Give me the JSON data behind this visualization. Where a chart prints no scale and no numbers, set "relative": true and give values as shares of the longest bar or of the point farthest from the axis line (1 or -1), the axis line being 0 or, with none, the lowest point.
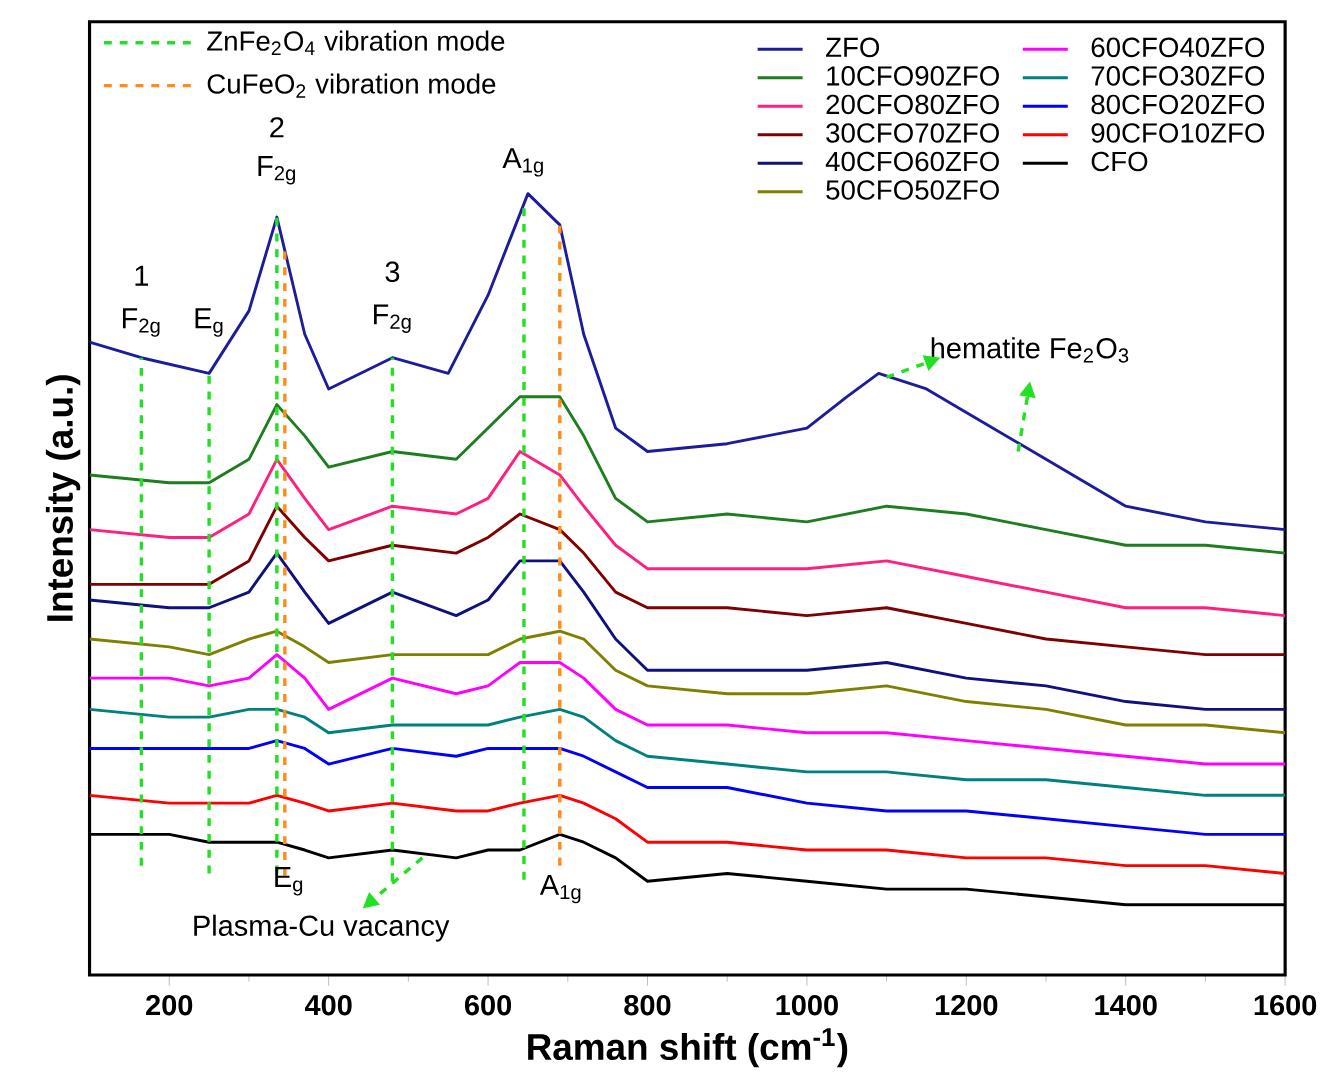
{
  "chart_data": {
    "type": "line",
    "relative": true,
    "xlabel": "Raman shift (cm$^{-1}$)",
    "ylabel": "Intensity (a.u.)",
    "xlim": [
      100,
      1600
    ],
    "xticks": [
      200,
      400,
      600,
      800,
      1000,
      1200,
      1400,
      1600
    ],
    "legend": "top right",
    "x": [
      100,
      200,
      250,
      300,
      335,
      370,
      400,
      480,
      560,
      600,
      640,
      690,
      720,
      760,
      800,
      900,
      1000,
      1100,
      1200,
      1300,
      1400,
      1500,
      1600
    ],
    "series": [
      {
        "name": "ZFO",
        "color": "#1c1c9c",
        "x": [
          100,
          165,
          250,
          300,
          335,
          370,
          400,
          480,
          550,
          600,
          650,
          690,
          720,
          760,
          800,
          900,
          1000,
          1050,
          1090,
          1150,
          1200,
          1300,
          1350,
          1400,
          1500,
          1600
        ],
        "values": [
          0.81,
          0.79,
          0.77,
          0.85,
          0.97,
          0.82,
          0.75,
          0.79,
          0.77,
          0.87,
          1.0,
          0.96,
          0.82,
          0.7,
          0.67,
          0.68,
          0.7,
          0.74,
          0.77,
          0.75,
          0.72,
          0.66,
          0.63,
          0.6,
          0.58,
          0.57
        ]
      },
      {
        "name": "10CFO90ZFO",
        "color": "#1e7d1e",
        "values": [
          0.64,
          0.63,
          0.63,
          0.66,
          0.73,
          0.69,
          0.65,
          0.67,
          0.66,
          0.7,
          0.74,
          0.74,
          0.69,
          0.61,
          0.58,
          0.59,
          0.58,
          0.6,
          0.59,
          0.57,
          0.55,
          0.55,
          0.54
        ]
      },
      {
        "name": "20CFO80ZFO",
        "color": "#ff1f7f",
        "values": [
          0.57,
          0.56,
          0.56,
          0.59,
          0.66,
          0.61,
          0.57,
          0.6,
          0.59,
          0.61,
          0.67,
          0.64,
          0.6,
          0.55,
          0.52,
          0.52,
          0.52,
          0.53,
          0.51,
          0.49,
          0.47,
          0.47,
          0.46
        ]
      },
      {
        "name": "30CFO70ZFO",
        "color": "#7f0000",
        "values": [
          0.5,
          0.5,
          0.5,
          0.53,
          0.6,
          0.56,
          0.53,
          0.55,
          0.54,
          0.56,
          0.59,
          0.57,
          0.54,
          0.49,
          0.47,
          0.47,
          0.46,
          0.47,
          0.45,
          0.43,
          0.42,
          0.41,
          0.41
        ]
      },
      {
        "name": "40CFO60ZFO",
        "color": "#10107f",
        "values": [
          0.48,
          0.47,
          0.47,
          0.49,
          0.54,
          0.49,
          0.45,
          0.49,
          0.46,
          0.48,
          0.53,
          0.53,
          0.49,
          0.43,
          0.39,
          0.39,
          0.39,
          0.4,
          0.38,
          0.37,
          0.35,
          0.34,
          0.34
        ]
      },
      {
        "name": "50CFO50ZFO",
        "color": "#808000",
        "values": [
          0.43,
          0.42,
          0.41,
          0.43,
          0.44,
          0.42,
          0.4,
          0.41,
          0.41,
          0.41,
          0.43,
          0.44,
          0.43,
          0.39,
          0.37,
          0.36,
          0.36,
          0.37,
          0.35,
          0.34,
          0.32,
          0.32,
          0.31
        ]
      },
      {
        "name": "60CFO40ZFO",
        "color": "#ff00ff",
        "values": [
          0.38,
          0.38,
          0.37,
          0.38,
          0.41,
          0.38,
          0.34,
          0.38,
          0.36,
          0.37,
          0.4,
          0.4,
          0.38,
          0.34,
          0.32,
          0.32,
          0.31,
          0.31,
          0.3,
          0.29,
          0.28,
          0.27,
          0.27
        ]
      },
      {
        "name": "70CFO30ZFO",
        "color": "#008080",
        "values": [
          0.34,
          0.33,
          0.33,
          0.34,
          0.34,
          0.33,
          0.31,
          0.32,
          0.32,
          0.32,
          0.33,
          0.34,
          0.33,
          0.3,
          0.28,
          0.27,
          0.26,
          0.26,
          0.25,
          0.25,
          0.24,
          0.23,
          0.23
        ]
      },
      {
        "name": "80CFO20ZFO",
        "color": "#0000ff",
        "values": [
          0.29,
          0.29,
          0.29,
          0.29,
          0.3,
          0.29,
          0.27,
          0.29,
          0.28,
          0.29,
          0.29,
          0.29,
          0.28,
          0.26,
          0.24,
          0.24,
          0.22,
          0.21,
          0.21,
          0.2,
          0.19,
          0.18,
          0.18
        ]
      },
      {
        "name": "90CFO10ZFO",
        "color": "#ff0000",
        "values": [
          0.23,
          0.22,
          0.22,
          0.22,
          0.23,
          0.22,
          0.21,
          0.22,
          0.21,
          0.21,
          0.22,
          0.23,
          0.22,
          0.2,
          0.17,
          0.17,
          0.16,
          0.16,
          0.15,
          0.15,
          0.14,
          0.14,
          0.13
        ]
      },
      {
        "name": "CFO",
        "color": "#000000",
        "values": [
          0.18,
          0.18,
          0.17,
          0.17,
          0.17,
          0.16,
          0.15,
          0.16,
          0.15,
          0.16,
          0.16,
          0.18,
          0.17,
          0.15,
          0.12,
          0.13,
          0.12,
          0.11,
          0.11,
          0.1,
          0.09,
          0.09,
          0.09
        ]
      }
    ],
    "ref_lines": [
      {
        "axis": "x",
        "value": 165,
        "label": "ZnFe$_{2}$O$_{4}$ vibration mode",
        "color": "#22e022",
        "line_style": "dashed"
      },
      {
        "axis": "x",
        "value": 250,
        "color": "#22e022",
        "line_style": "dashed"
      },
      {
        "axis": "x",
        "value": 335,
        "color": "#22e022",
        "line_style": "dashed"
      },
      {
        "axis": "x",
        "value": 480,
        "color": "#22e022",
        "line_style": "dashed"
      },
      {
        "axis": "x",
        "value": 645,
        "color": "#22e022",
        "line_style": "dashed"
      },
      {
        "axis": "x",
        "value": 345,
        "label": "CuFeO$_{2}$ vibration mode",
        "color": "#ff8c1a",
        "line_style": "dashed"
      },
      {
        "axis": "x",
        "value": 690,
        "color": "#ff8c1a",
        "line_style": "dashed"
      }
    ],
    "annotations": [
      "1",
      "F$_{2g}$",
      "E$_{g}$",
      "2",
      "F$_{2g}$",
      "3",
      "F$_{2g}$",
      "A$_{1g}$",
      "hematite Fe$_{2}$O$_{3}$",
      "E$_{g}$",
      "A$_{1g}$",
      "Plasma-Cu vacancy"
    ]
  }
}
